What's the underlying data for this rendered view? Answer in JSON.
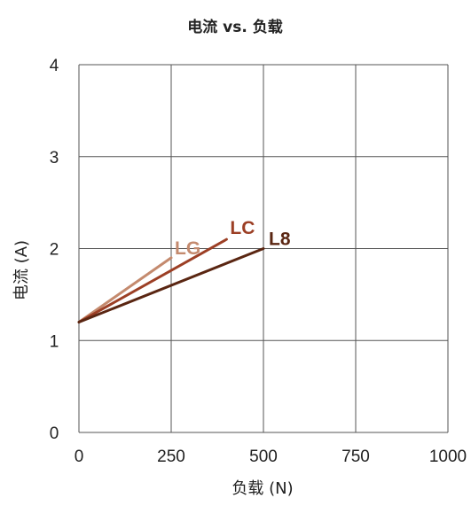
{
  "chart_data": {
    "type": "line",
    "title": "电流 vs. 负载",
    "xlabel": "负载 (N)",
    "ylabel": "电流 (A)",
    "xlim": [
      0,
      1000
    ],
    "ylim": [
      0,
      4
    ],
    "xticks": [
      "0",
      "250",
      "500",
      "750",
      "1000"
    ],
    "yticks": [
      "0",
      "1",
      "2",
      "3",
      "4"
    ],
    "grid": true,
    "series": [
      {
        "name": "LG",
        "color": "#c48a6e",
        "x": [
          0,
          250
        ],
        "y": [
          1.2,
          1.9
        ]
      },
      {
        "name": "LC",
        "color": "#9c3f25",
        "x": [
          0,
          400
        ],
        "y": [
          1.2,
          2.1
        ]
      },
      {
        "name": "L8",
        "color": "#5a2612",
        "x": [
          0,
          500
        ],
        "y": [
          1.2,
          2.0
        ]
      }
    ]
  }
}
